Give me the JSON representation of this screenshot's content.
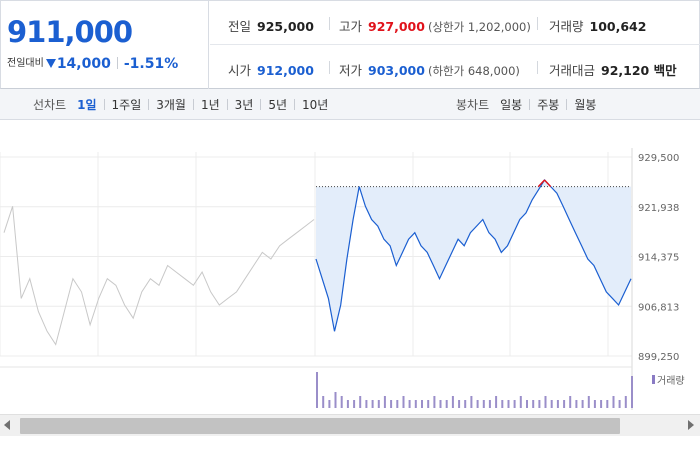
{
  "quote": {
    "current_price": "911,000",
    "change_label": "전일대비",
    "change_direction": "down",
    "change_amount": "14,000",
    "change_percent": "-1.51%",
    "metrics_row1": [
      {
        "label": "전일",
        "value": "925,000",
        "tone": "normal",
        "sub": ""
      },
      {
        "label": "고가",
        "value": "927,000",
        "tone": "up",
        "sub": "(상한가 1,202,000)"
      },
      {
        "label": "거래량",
        "value": "100,642",
        "tone": "normal",
        "sub": ""
      }
    ],
    "metrics_row2": [
      {
        "label": "시가",
        "value": "912,000",
        "tone": "down",
        "sub": ""
      },
      {
        "label": "저가",
        "value": "903,000",
        "tone": "down",
        "sub": "(하한가 648,000)"
      },
      {
        "label": "거래대금",
        "value": "92,120 백만",
        "tone": "normal",
        "sub": ""
      }
    ]
  },
  "toolbar": {
    "line_chart_title": "선차트",
    "line_ranges": [
      "1일",
      "1주일",
      "3개월",
      "1년",
      "3년",
      "5년",
      "10년"
    ],
    "line_selected": "1일",
    "candle_chart_title": "봉차트",
    "candle_ranges": [
      "일봉",
      "주봉",
      "월봉"
    ]
  },
  "colors": {
    "accent_blue": "#1b5fd1",
    "up_red": "#e0121b",
    "prev_day_gray": "#c8c8c8",
    "today_fill": "#e3edfa"
  },
  "chart_data": {
    "type": "line",
    "y_ticks": [
      "929,500",
      "921,938",
      "914,375",
      "906,813",
      "899,250"
    ],
    "ylim": [
      899250,
      929500
    ],
    "reference_price": 925000,
    "volume_legend": "거래량",
    "previous_day_series": [
      918000,
      922000,
      908000,
      911000,
      906000,
      903000,
      901000,
      906000,
      911000,
      909000,
      904000,
      908000,
      911000,
      910000,
      907000,
      905000,
      909000,
      911000,
      910000,
      913000,
      912000,
      911000,
      910000,
      912000,
      909000,
      907000,
      908000,
      909000,
      911000,
      913000,
      915000,
      914000,
      916000,
      917000,
      918000,
      919000,
      920000
    ],
    "today_series": [
      914000,
      911000,
      908000,
      903000,
      907000,
      914000,
      920000,
      925000,
      922000,
      920000,
      919000,
      917000,
      916000,
      913000,
      915000,
      917000,
      918000,
      916000,
      915000,
      913000,
      911000,
      913000,
      915000,
      917000,
      916000,
      918000,
      919000,
      920000,
      918000,
      917000,
      915000,
      916000,
      918000,
      920000,
      921000,
      923000,
      924500,
      926000,
      925000,
      924000,
      922000,
      920000,
      918000,
      916000,
      914000,
      913000,
      911000,
      909000,
      908000,
      907000,
      909000,
      911000
    ],
    "volume_today": [
      0.9,
      0.3,
      0.2,
      0.4,
      0.3,
      0.2,
      0.2,
      0.3,
      0.2,
      0.2,
      0.2,
      0.3,
      0.2,
      0.2,
      0.3,
      0.2,
      0.2,
      0.2,
      0.2,
      0.3,
      0.2,
      0.2,
      0.3,
      0.2,
      0.2,
      0.3,
      0.2,
      0.2,
      0.2,
      0.3,
      0.2,
      0.2,
      0.2,
      0.3,
      0.2,
      0.2,
      0.2,
      0.3,
      0.2,
      0.2,
      0.2,
      0.3,
      0.2,
      0.2,
      0.3,
      0.2,
      0.2,
      0.2,
      0.3,
      0.2,
      0.3,
      0.8
    ]
  }
}
